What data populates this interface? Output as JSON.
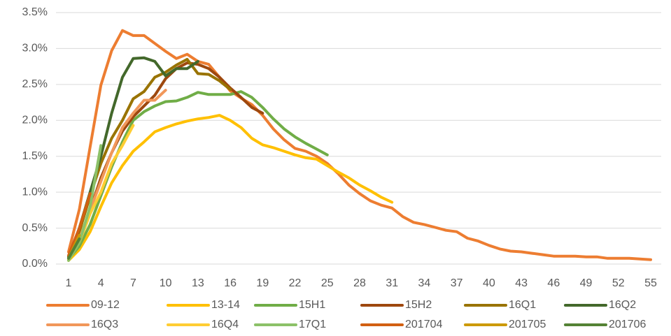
{
  "chart_data": {
    "type": "line",
    "x": [
      1,
      2,
      3,
      4,
      5,
      6,
      7,
      8,
      9,
      10,
      11,
      12,
      13,
      14,
      15,
      16,
      17,
      18,
      19,
      20,
      21,
      22,
      23,
      24,
      25,
      26,
      27,
      28,
      29,
      30,
      31,
      32,
      33,
      34,
      35,
      36,
      37,
      38,
      39,
      40,
      41,
      42,
      43,
      44,
      45,
      46,
      47,
      48,
      49,
      50,
      51,
      52,
      53,
      54,
      55
    ],
    "xlim": [
      1,
      55
    ],
    "xticks": [
      1,
      4,
      7,
      10,
      13,
      16,
      19,
      22,
      25,
      28,
      31,
      34,
      37,
      40,
      43,
      46,
      49,
      52,
      55
    ],
    "ylim": [
      0,
      3.5
    ],
    "yticks": [
      {
        "value": 0,
        "label": "0.0%"
      },
      {
        "value": 0.5,
        "label": "0.5%"
      },
      {
        "value": 1,
        "label": "1.0%"
      },
      {
        "value": 1.5,
        "label": "1.5%"
      },
      {
        "value": 2,
        "label": "2.0%"
      },
      {
        "value": 2.5,
        "label": "2.5%"
      },
      {
        "value": 3,
        "label": "3.0%"
      },
      {
        "value": 3.5,
        "label": "3.5%"
      }
    ],
    "grid": true,
    "legend": "bottom",
    "series": [
      {
        "name": "09-12",
        "color": "#ed7d31",
        "values": [
          0.17,
          0.76,
          1.63,
          2.49,
          2.97,
          3.25,
          3.18,
          3.18,
          3.07,
          2.96,
          2.86,
          2.92,
          2.82,
          2.78,
          2.6,
          2.41,
          2.31,
          2.22,
          2.07,
          1.88,
          1.73,
          1.61,
          1.57,
          1.5,
          1.4,
          1.26,
          1.1,
          0.98,
          0.88,
          0.82,
          0.78,
          0.66,
          0.58,
          0.55,
          0.51,
          0.47,
          0.45,
          0.36,
          0.32,
          0.26,
          0.21,
          0.18,
          0.17,
          0.15,
          0.13,
          0.11,
          0.11,
          0.11,
          0.1,
          0.1,
          0.08,
          0.08,
          0.08,
          0.07,
          0.06
        ]
      },
      {
        "name": "13-14",
        "color": "#ffc000",
        "values": [
          0.05,
          0.2,
          0.45,
          0.8,
          1.13,
          1.37,
          1.57,
          1.7,
          1.84,
          1.9,
          1.95,
          1.99,
          2.02,
          2.04,
          2.07,
          2.0,
          1.9,
          1.75,
          1.66,
          1.62,
          1.57,
          1.52,
          1.48,
          1.46,
          1.37,
          1.28,
          1.2,
          1.1,
          1.02,
          0.93,
          0.86,
          null,
          null,
          null,
          null,
          null,
          null,
          null,
          null,
          null,
          null,
          null,
          null,
          null,
          null,
          null,
          null,
          null,
          null,
          null,
          null,
          null,
          null,
          null,
          null
        ]
      },
      {
        "name": "15H1",
        "color": "#70ad47",
        "values": [
          0.07,
          0.25,
          0.55,
          0.95,
          1.35,
          1.7,
          2.0,
          2.12,
          2.2,
          2.26,
          2.27,
          2.32,
          2.39,
          2.36,
          2.36,
          2.36,
          2.4,
          2.32,
          2.18,
          2.02,
          1.88,
          1.77,
          1.68,
          1.6,
          1.52,
          null,
          null,
          null,
          null,
          null,
          null,
          null,
          null,
          null,
          null,
          null,
          null,
          null,
          null,
          null,
          null,
          null,
          null,
          null,
          null,
          null,
          null,
          null,
          null,
          null,
          null,
          null,
          null,
          null,
          null
        ]
      },
      {
        "name": "15H2",
        "color": "#9e480e",
        "values": [
          0.1,
          0.35,
          0.75,
          1.2,
          1.55,
          1.85,
          2.05,
          2.2,
          2.35,
          2.58,
          2.72,
          2.8,
          2.78,
          2.72,
          2.6,
          2.45,
          2.32,
          2.18,
          2.1,
          null,
          null,
          null,
          null,
          null,
          null,
          null,
          null,
          null,
          null,
          null,
          null,
          null,
          null,
          null,
          null,
          null,
          null,
          null,
          null,
          null,
          null,
          null,
          null,
          null,
          null,
          null,
          null,
          null,
          null,
          null,
          null,
          null,
          null,
          null,
          null
        ]
      },
      {
        "name": "16Q1",
        "color": "#997300",
        "values": [
          0.1,
          0.45,
          0.95,
          1.4,
          1.75,
          2.0,
          2.3,
          2.4,
          2.6,
          2.67,
          2.77,
          2.85,
          2.65,
          2.64,
          2.55,
          2.43,
          null,
          null,
          null,
          null,
          null,
          null,
          null,
          null,
          null,
          null,
          null,
          null,
          null,
          null,
          null,
          null,
          null,
          null,
          null,
          null,
          null,
          null,
          null,
          null,
          null,
          null,
          null,
          null,
          null,
          null,
          null,
          null,
          null,
          null,
          null,
          null,
          null,
          null,
          null
        ]
      },
      {
        "name": "16Q2",
        "color": "#43682b",
        "values": [
          0.1,
          0.5,
          1.0,
          1.5,
          2.1,
          2.6,
          2.86,
          2.87,
          2.82,
          2.62,
          2.72,
          2.72,
          2.82,
          null,
          null,
          null,
          null,
          null,
          null,
          null,
          null,
          null,
          null,
          null,
          null,
          null,
          null,
          null,
          null,
          null,
          null,
          null,
          null,
          null,
          null,
          null,
          null,
          null,
          null,
          null,
          null,
          null,
          null,
          null,
          null,
          null,
          null,
          null,
          null,
          null,
          null,
          null,
          null,
          null,
          null
        ]
      },
      {
        "name": "16Q3",
        "color": "#f1975a",
        "values": [
          0.08,
          0.35,
          0.75,
          1.15,
          1.55,
          1.9,
          2.1,
          2.28,
          2.28,
          2.42,
          null,
          null,
          null,
          null,
          null,
          null,
          null,
          null,
          null,
          null,
          null,
          null,
          null,
          null,
          null,
          null,
          null,
          null,
          null,
          null,
          null,
          null,
          null,
          null,
          null,
          null,
          null,
          null,
          null,
          null,
          null,
          null,
          null,
          null,
          null,
          null,
          null,
          null,
          null,
          null,
          null,
          null,
          null,
          null,
          null
        ]
      },
      {
        "name": "16Q4",
        "color": "#ffcd33",
        "values": [
          0.06,
          0.3,
          0.7,
          1.0,
          1.4,
          1.65,
          1.93,
          null,
          null,
          null,
          null,
          null,
          null,
          null,
          null,
          null,
          null,
          null,
          null,
          null,
          null,
          null,
          null,
          null,
          null,
          null,
          null,
          null,
          null,
          null,
          null,
          null,
          null,
          null,
          null,
          null,
          null,
          null,
          null,
          null,
          null,
          null,
          null,
          null,
          null,
          null,
          null,
          null,
          null,
          null,
          null,
          null,
          null,
          null,
          null
        ]
      },
      {
        "name": "17Q1",
        "color": "#8cc168",
        "values": [
          0.05,
          0.3,
          0.8,
          1.65,
          null,
          null,
          null,
          null,
          null,
          null,
          null,
          null,
          null,
          null,
          null,
          null,
          null,
          null,
          null,
          null,
          null,
          null,
          null,
          null,
          null,
          null,
          null,
          null,
          null,
          null,
          null,
          null,
          null,
          null,
          null,
          null,
          null,
          null,
          null,
          null,
          null,
          null,
          null,
          null,
          null,
          null,
          null,
          null,
          null,
          null,
          null,
          null,
          null,
          null,
          null
        ]
      },
      {
        "name": "201704",
        "color": "#d26012",
        "values": [
          0.12,
          0.5,
          0.98,
          null,
          null,
          null,
          null,
          null,
          null,
          null,
          null,
          null,
          null,
          null,
          null,
          null,
          null,
          null,
          null,
          null,
          null,
          null,
          null,
          null,
          null,
          null,
          null,
          null,
          null,
          null,
          null,
          null,
          null,
          null,
          null,
          null,
          null,
          null,
          null,
          null,
          null,
          null,
          null,
          null,
          null,
          null,
          null,
          null,
          null,
          null,
          null,
          null,
          null,
          null,
          null
        ]
      },
      {
        "name": "201705",
        "color": "#cc9a06",
        "values": [
          0.08,
          0.4,
          null,
          null,
          null,
          null,
          null,
          null,
          null,
          null,
          null,
          null,
          null,
          null,
          null,
          null,
          null,
          null,
          null,
          null,
          null,
          null,
          null,
          null,
          null,
          null,
          null,
          null,
          null,
          null,
          null,
          null,
          null,
          null,
          null,
          null,
          null,
          null,
          null,
          null,
          null,
          null,
          null,
          null,
          null,
          null,
          null,
          null,
          null,
          null,
          null,
          null,
          null,
          null,
          null
        ]
      },
      {
        "name": "201706",
        "color": "#548235",
        "values": [
          0.08,
          0.35,
          null,
          null,
          null,
          null,
          null,
          null,
          null,
          null,
          null,
          null,
          null,
          null,
          null,
          null,
          null,
          null,
          null,
          null,
          null,
          null,
          null,
          null,
          null,
          null,
          null,
          null,
          null,
          null,
          null,
          null,
          null,
          null,
          null,
          null,
          null,
          null,
          null,
          null,
          null,
          null,
          null,
          null,
          null,
          null,
          null,
          null,
          null,
          null,
          null,
          null,
          null,
          null,
          null
        ]
      }
    ]
  }
}
